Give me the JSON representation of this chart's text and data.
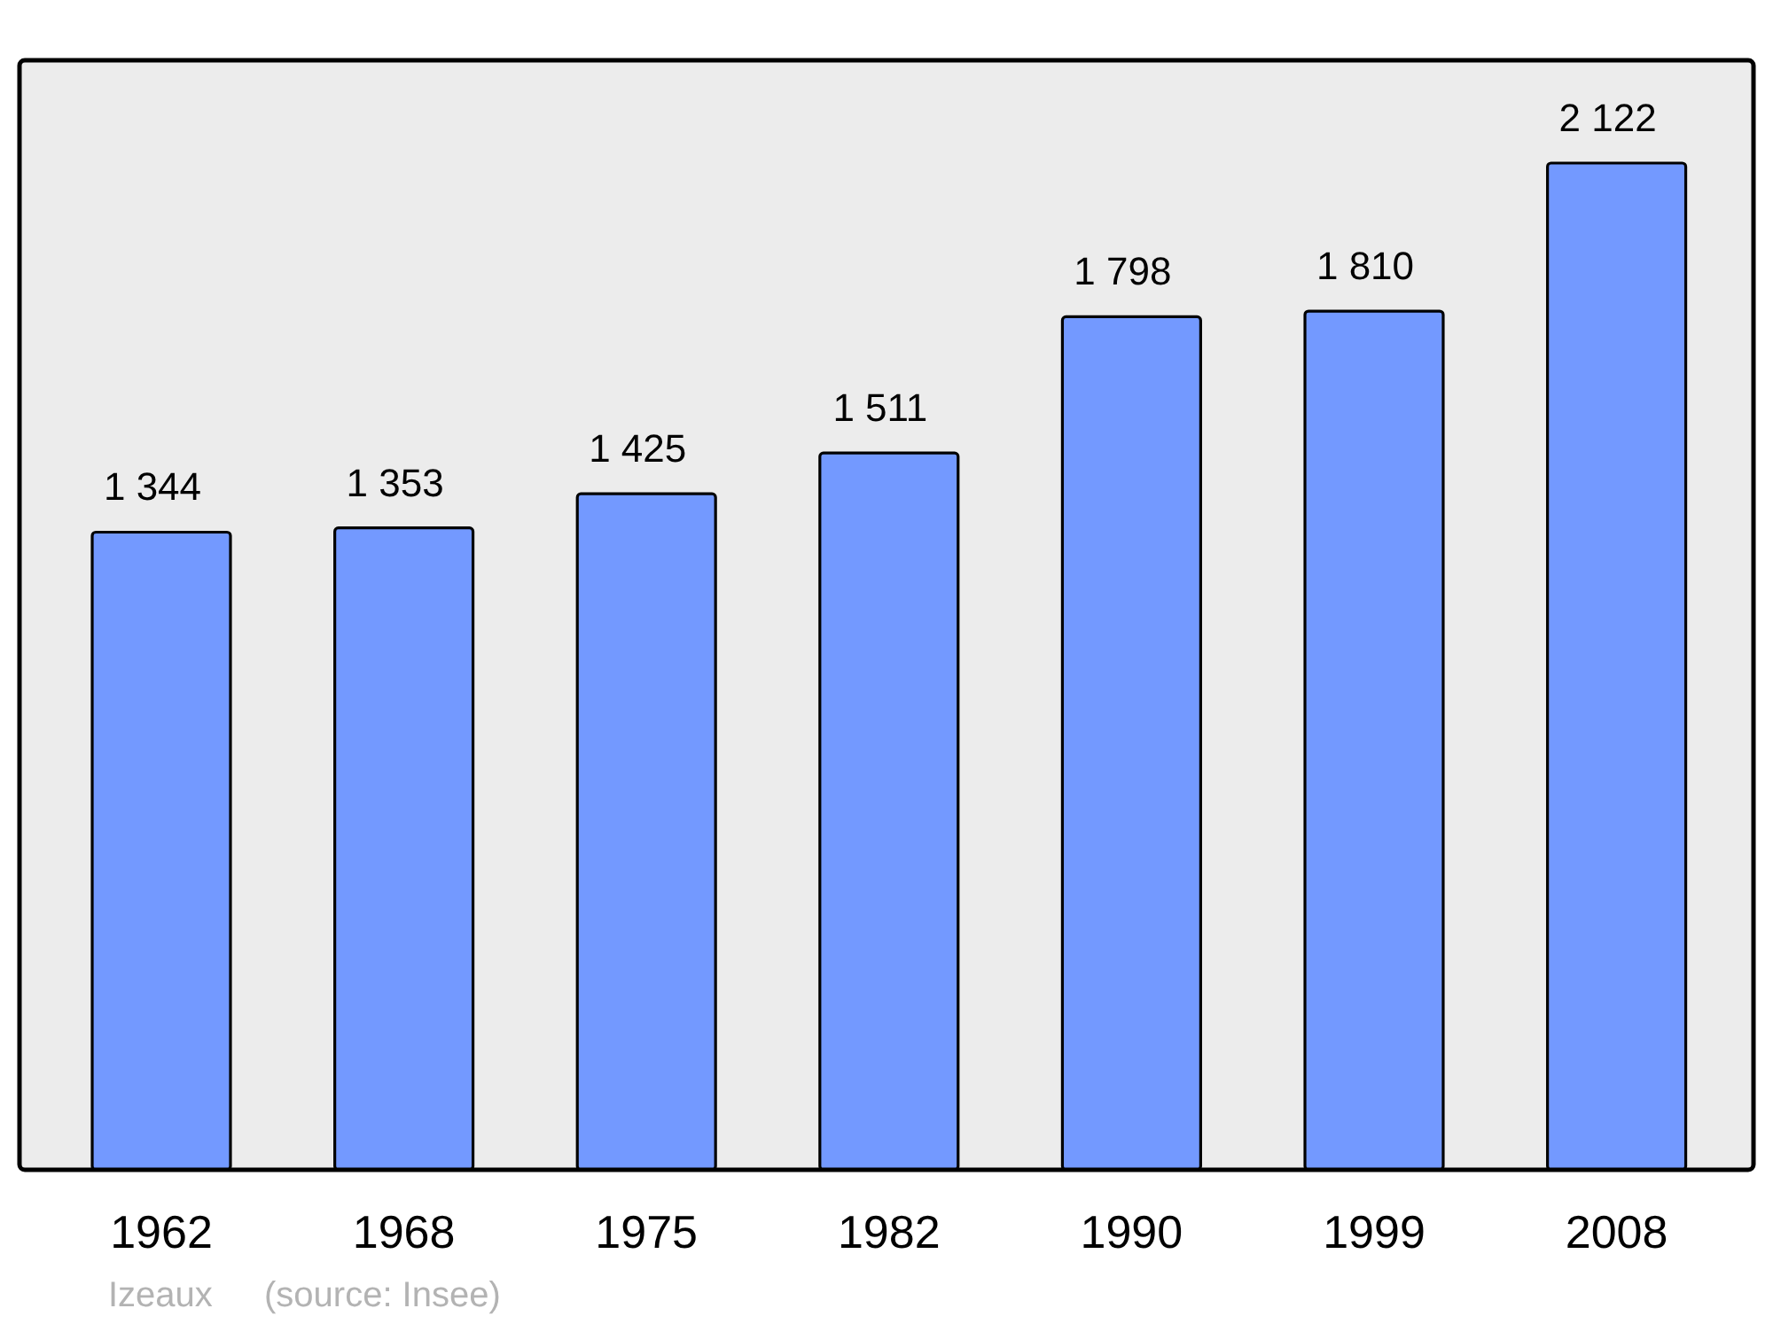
{
  "chart_data": {
    "type": "bar",
    "categories": [
      "1962",
      "1968",
      "1975",
      "1982",
      "1990",
      "1999",
      "2008"
    ],
    "values": [
      1344,
      1353,
      1425,
      1511,
      1798,
      1810,
      2122
    ],
    "color": "#7399ff",
    "value_labels": [
      "1 344",
      "1 353",
      "1 425",
      "1 511",
      "1 798",
      "1 810",
      "2 122"
    ],
    "annotations": [
      "Izeaux",
      "(source: Insee)"
    ]
  }
}
